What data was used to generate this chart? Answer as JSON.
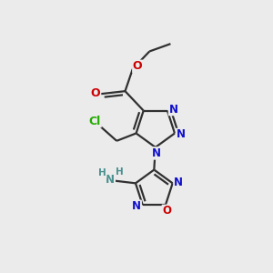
{
  "background_color": "#ebebeb",
  "figsize": [
    3.0,
    3.0
  ],
  "dpi": 100,
  "N_col": "#1010cc",
  "O_col": "#cc0000",
  "Cl_col": "#22aa00",
  "NH_col": "#4a9090",
  "bond_color": "#303030",
  "bond_width": 1.6,
  "font_size": 8.5,
  "xlim": [
    0,
    10
  ],
  "ylim": [
    0,
    10
  ]
}
